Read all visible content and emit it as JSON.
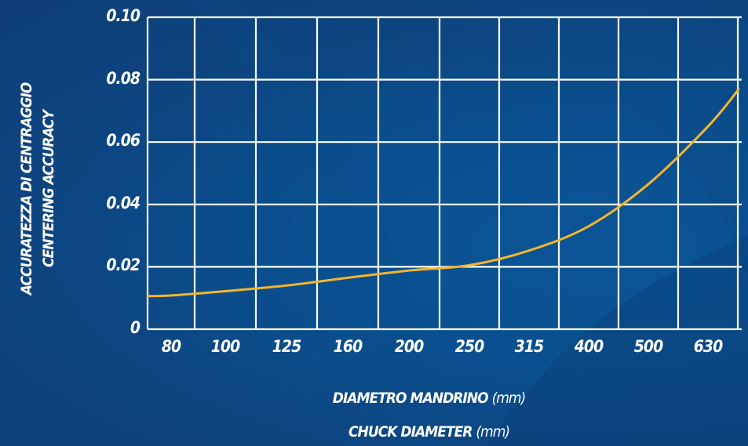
{
  "chart_data": {
    "type": "line",
    "x_categories": [
      "80",
      "100",
      "125",
      "160",
      "200",
      "250",
      "315",
      "400",
      "500",
      "630"
    ],
    "y_ticks": [
      "0",
      "0.02",
      "0.04",
      "0.06",
      "0.08",
      "0.10"
    ],
    "ylim": [
      0,
      0.1
    ],
    "grid": true,
    "series": [
      {
        "color": "#f5b52c",
        "points": [
          {
            "x": "80",
            "y": 0.0108
          },
          {
            "x": "100",
            "y": 0.0122
          },
          {
            "x": "125",
            "y": 0.014
          },
          {
            "x": "160",
            "y": 0.0165
          },
          {
            "x": "200",
            "y": 0.0188
          },
          {
            "x": "250",
            "y": 0.0205
          },
          {
            "x": "315",
            "y": 0.0252
          },
          {
            "x": "400",
            "y": 0.033
          },
          {
            "x": "500",
            "y": 0.0465
          },
          {
            "x": "630",
            "y": 0.065
          }
        ]
      }
    ],
    "ylabel_line1": "ACCURATEZZA DI CENTRAGGIO",
    "ylabel_line2": "CENTERING ACCURACY",
    "xlabel_line1": "DIAMETRO MANDRINO",
    "xlabel_line2": "CHUCK DIAMETER",
    "xlabel_unit": "(mm)"
  },
  "colors": {
    "background": "#0b4a8a",
    "grid": "#ffffff",
    "line": "#f5b52c",
    "text": "#ffffff"
  }
}
